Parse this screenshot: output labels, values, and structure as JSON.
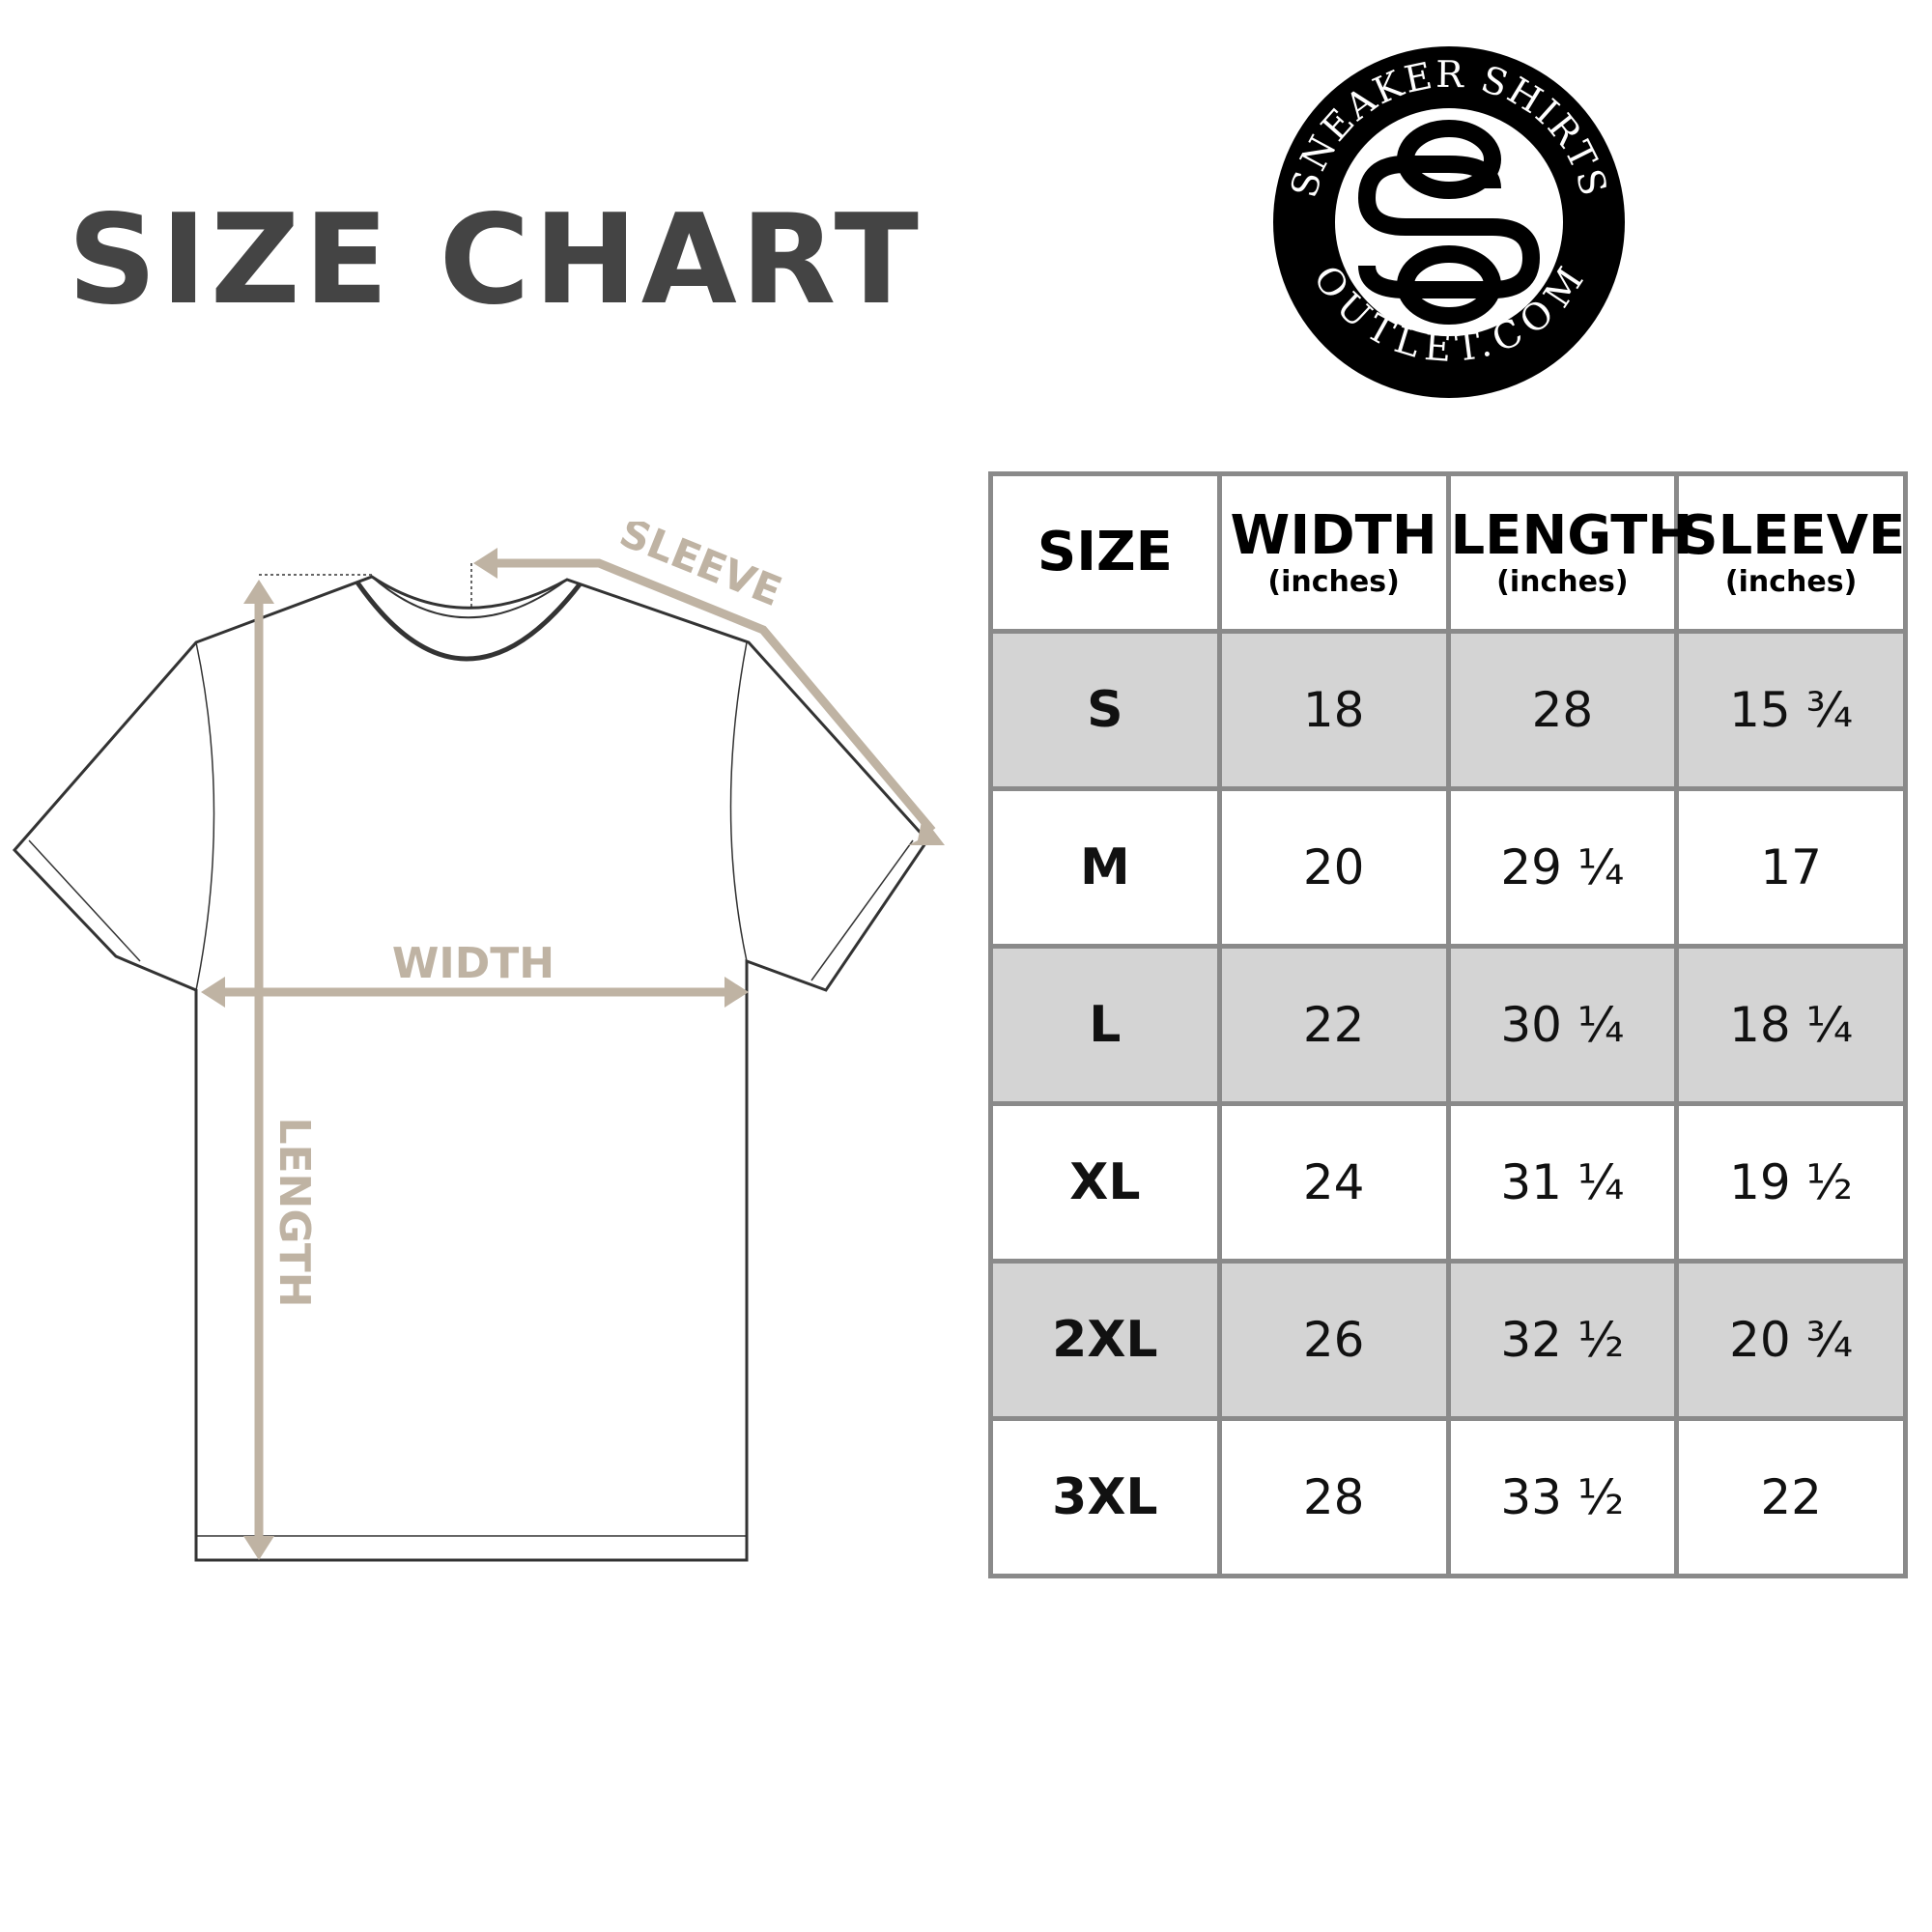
{
  "title": "SIZE CHART",
  "logo": {
    "top_text": "SNEAKER SHIRTS",
    "bottom_text": "OUTLET.COM",
    "monogram": "SO"
  },
  "diagram": {
    "sleeve_label": "SLEEVE",
    "width_label": "WIDTH",
    "length_label": "LENGTH",
    "accent_color": "#bfb3a3"
  },
  "table": {
    "headers": [
      {
        "label": "SIZE",
        "unit": ""
      },
      {
        "label": "WIDTH",
        "unit": "(inches)"
      },
      {
        "label": "LENGTH",
        "unit": "(inches)"
      },
      {
        "label": "SLEEVE",
        "unit": "(inches)"
      }
    ],
    "rows": [
      [
        "S",
        "18",
        "28",
        "15 ¾"
      ],
      [
        "M",
        "20",
        "29 ¼",
        "17"
      ],
      [
        "L",
        "22",
        "30 ¼",
        "18 ¼"
      ],
      [
        "XL",
        "24",
        "31 ¼",
        "19 ½"
      ],
      [
        "2XL",
        "26",
        "32 ½",
        "20 ¾"
      ],
      [
        "3XL",
        "28",
        "33 ½",
        "22"
      ]
    ],
    "shade_color": "#d4d4d4",
    "border_color": "#8a8a8a"
  }
}
